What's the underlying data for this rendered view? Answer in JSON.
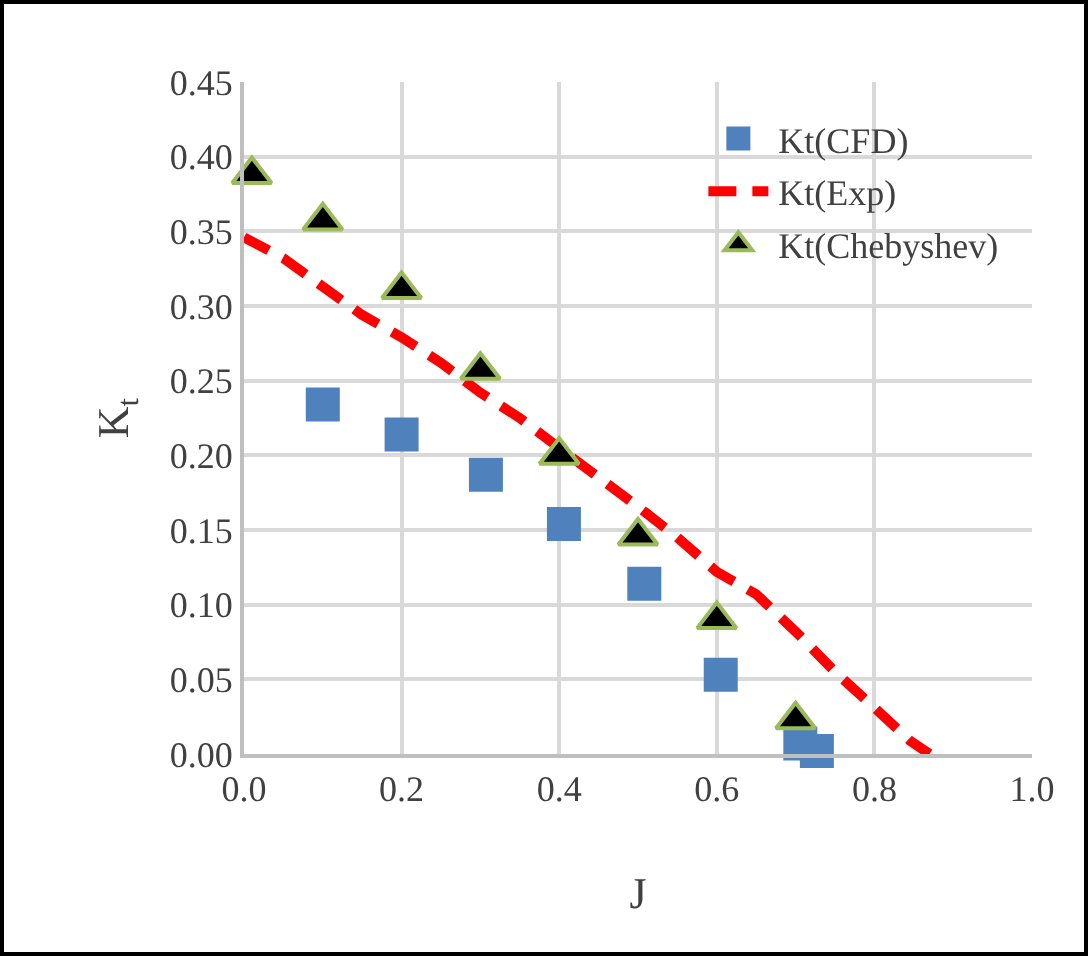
{
  "chart_data": {
    "type": "scatter",
    "xlabel": "J",
    "ylabel": "K$_{t}$",
    "xlim": [
      0,
      1
    ],
    "xticks": [
      {
        "value": 0,
        "label": "0.0"
      },
      {
        "value": 0.2,
        "label": "0.2"
      },
      {
        "value": 0.4,
        "label": "0.4"
      },
      {
        "value": 0.6,
        "label": "0.6"
      },
      {
        "value": 0.8,
        "label": "0.8"
      },
      {
        "value": 1,
        "label": "1.0"
      }
    ],
    "ylim": [
      0,
      0.45
    ],
    "yticks": [
      {
        "value": 0,
        "label": "0.00"
      },
      {
        "value": 0.05,
        "label": "0.05"
      },
      {
        "value": 0.1,
        "label": "0.10"
      },
      {
        "value": 0.15,
        "label": "0.15"
      },
      {
        "value": 0.2,
        "label": "0.20"
      },
      {
        "value": 0.25,
        "label": "0.25"
      },
      {
        "value": 0.3,
        "label": "0.30"
      },
      {
        "value": 0.35,
        "label": "0.35"
      },
      {
        "value": 0.4,
        "label": "0.40"
      },
      {
        "value": 0.45,
        "label": "0.45"
      }
    ],
    "grid": true,
    "legend": "top right",
    "series": [
      {
        "name": "Kt(CFD)",
        "color": "#4f81bd",
        "marker": "square",
        "x": [
          0.1,
          0.2,
          0.307,
          0.406,
          0.508,
          0.605,
          0.706,
          0.727
        ],
        "values": [
          0.234,
          0.214,
          0.187,
          0.154,
          0.114,
          0.053,
          0.007,
          0.002
        ]
      },
      {
        "name": "Kt(Exp)",
        "color": "#ff0000",
        "type": "line",
        "marker": "none",
        "line_style": "dashed",
        "x": [
          0.0,
          0.05,
          0.1,
          0.15,
          0.2,
          0.25,
          0.3,
          0.35,
          0.4,
          0.504,
          0.55,
          0.6,
          0.65,
          0.7,
          0.75,
          0.8,
          0.845,
          0.87
        ],
        "values": [
          0.346,
          0.332,
          0.313,
          0.294,
          0.279,
          0.262,
          0.242,
          0.225,
          0.205,
          0.164,
          0.145,
          0.122,
          0.107,
          0.082,
          0.055,
          0.031,
          0.009,
          0.0
        ]
      },
      {
        "name": "Kt(Chebyshev)",
        "color": "#000000",
        "marker": "triangle",
        "x": [
          0.01,
          0.1,
          0.2,
          0.3,
          0.4,
          0.5,
          0.6,
          0.7
        ],
        "values": [
          0.388,
          0.357,
          0.311,
          0.257,
          0.2,
          0.146,
          0.09,
          0.023
        ]
      }
    ]
  }
}
